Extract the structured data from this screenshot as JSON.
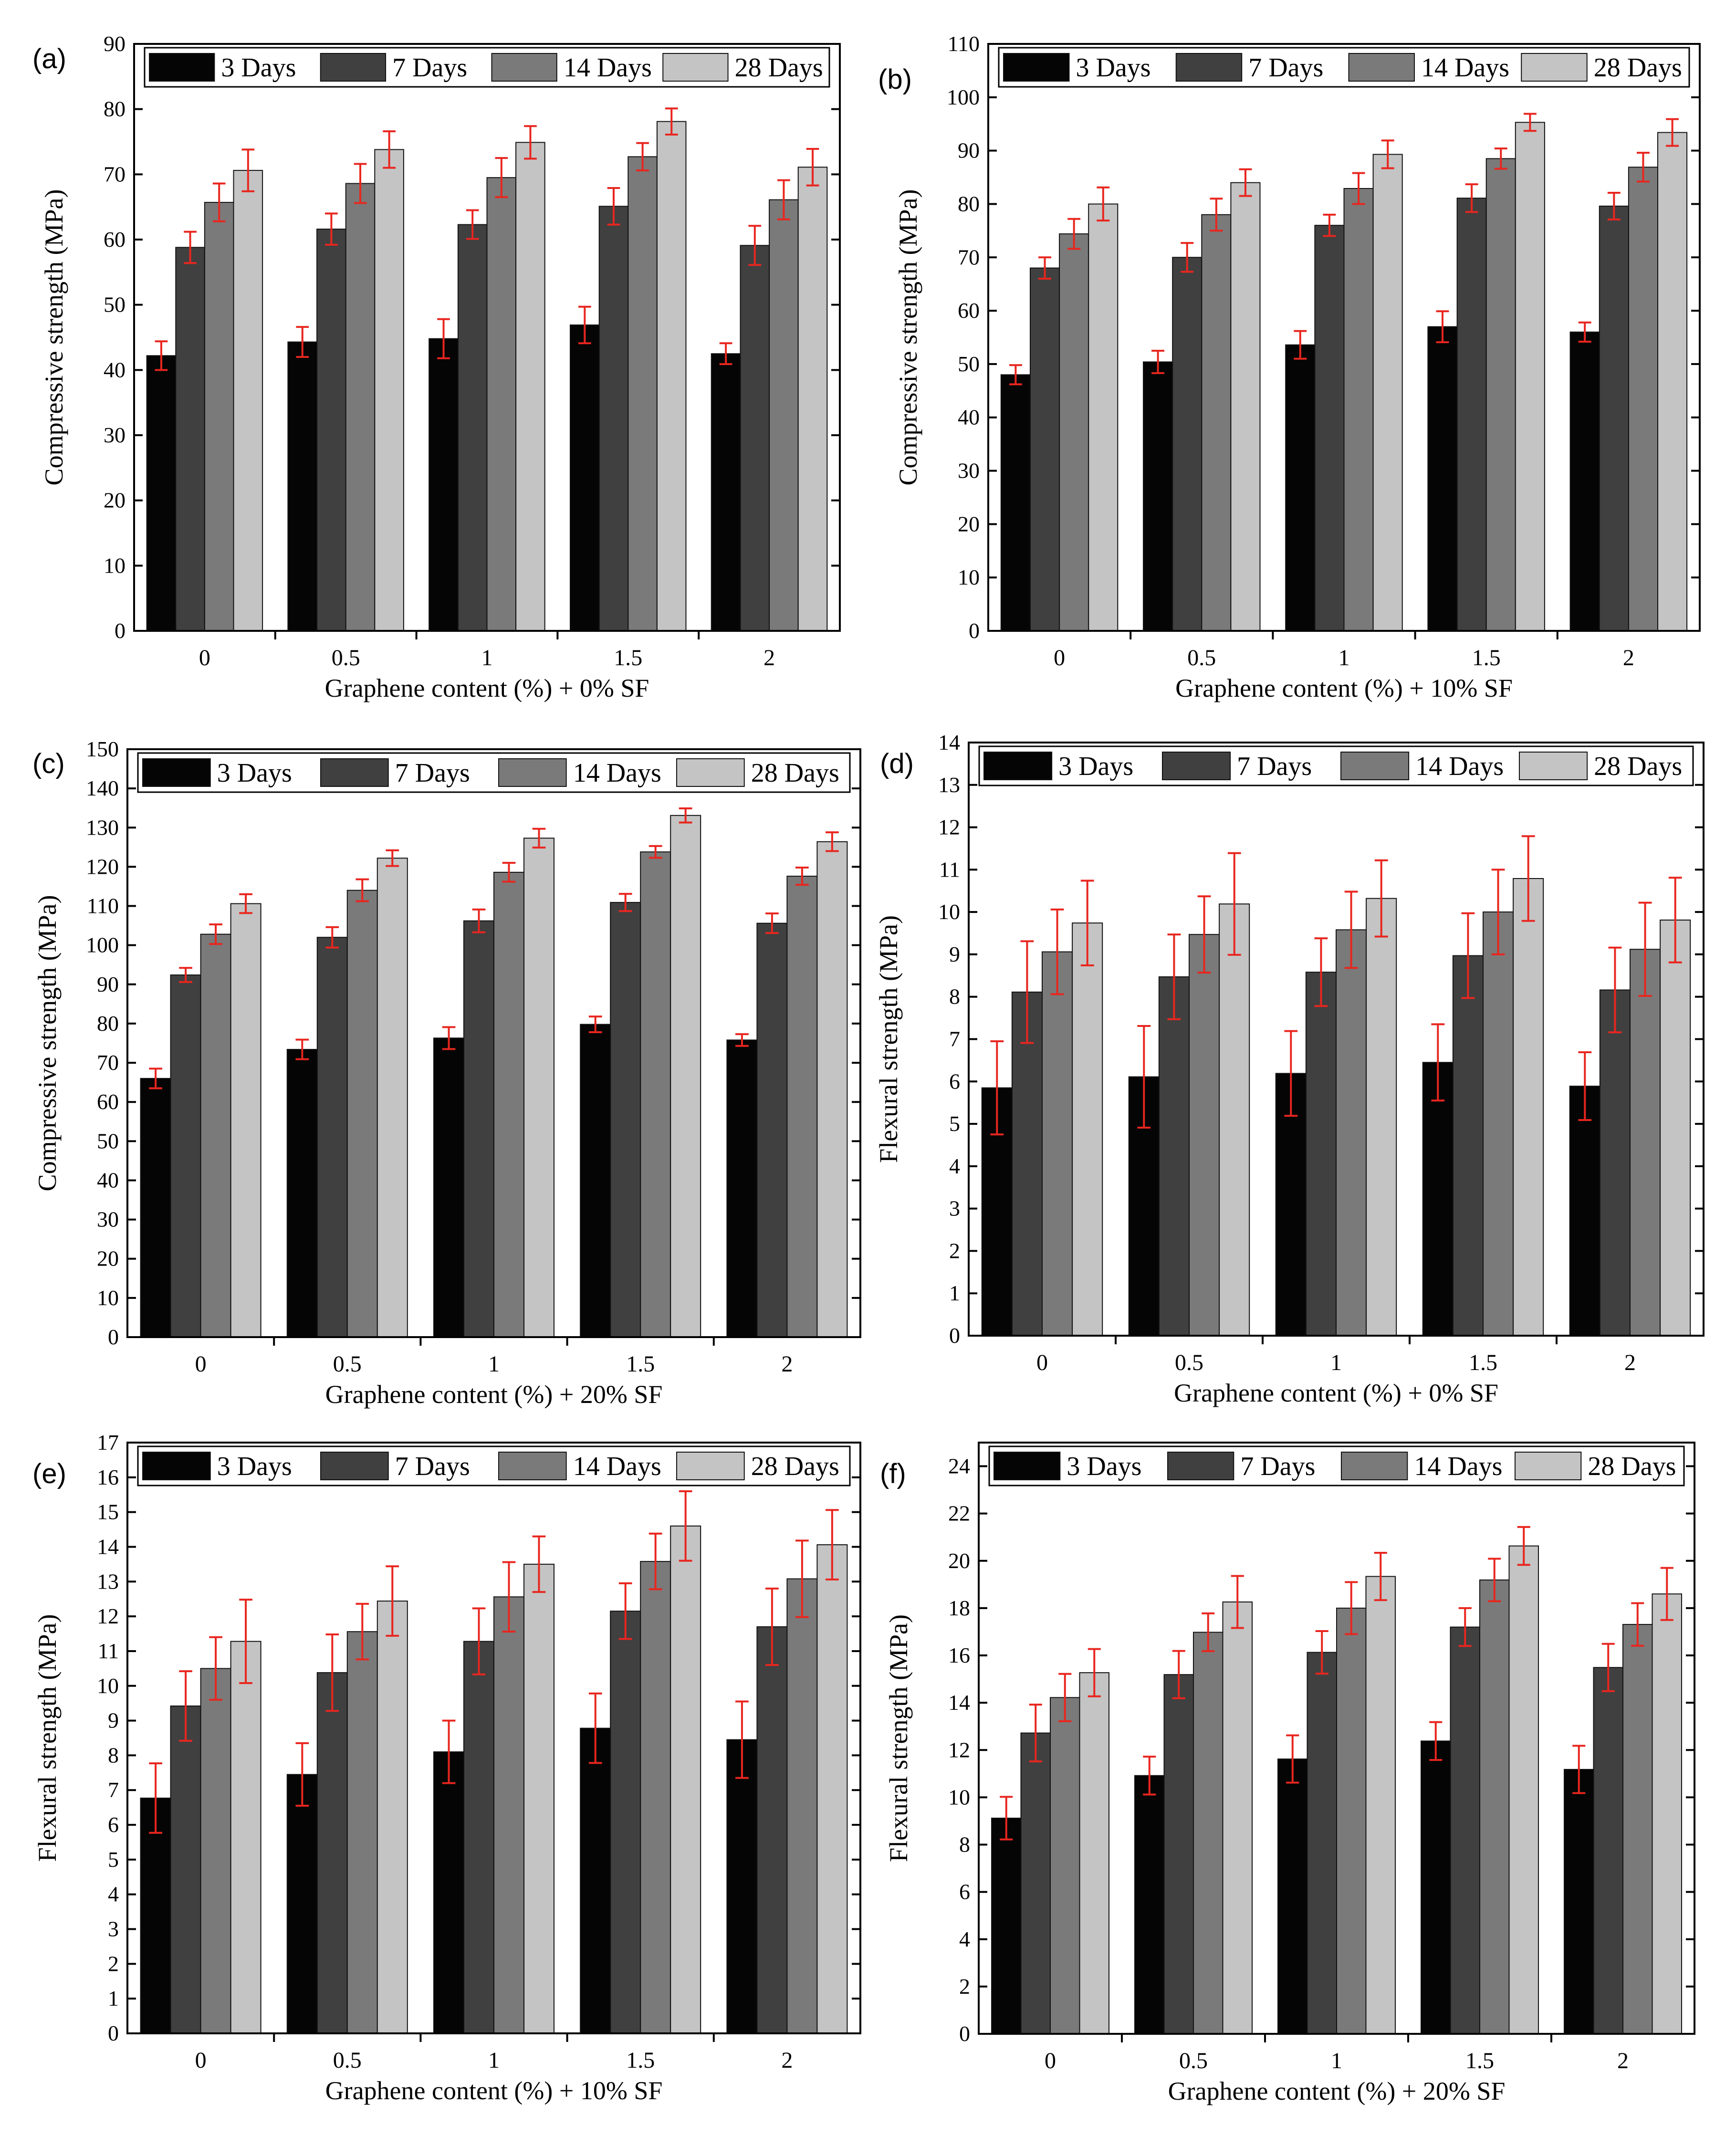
{
  "figure": {
    "legend": [
      "3 Days",
      "7 Days",
      "14 Days",
      "28 Days"
    ],
    "series_colors": [
      "#050505",
      "#404040",
      "#7a7a7a",
      "#c4c4c4"
    ],
    "error_bar_color": "#e8261f",
    "axis_color": "#000000"
  },
  "chart_data": [
    {
      "type": "bar",
      "panel_label": "(a)",
      "title": "",
      "xlabel": "Graphene content (%) + 0% SF",
      "ylabel": "Compressive strength (MPa)",
      "categories": [
        "0",
        "0.5",
        "1",
        "1.5",
        "2"
      ],
      "ylim": [
        0,
        90
      ],
      "yticks": [
        0,
        10,
        20,
        30,
        40,
        50,
        60,
        70,
        80,
        90
      ],
      "series": [
        {
          "name": "3 Days",
          "values": [
            42.2,
            44.3,
            44.8,
            46.9,
            42.5
          ],
          "errors": [
            2.2,
            2.3,
            3.0,
            2.8,
            1.6
          ]
        },
        {
          "name": "7 Days",
          "values": [
            58.8,
            61.6,
            62.3,
            65.1,
            59.1
          ],
          "errors": [
            2.4,
            2.4,
            2.2,
            2.8,
            3.0
          ]
        },
        {
          "name": "14 Days",
          "values": [
            65.7,
            68.6,
            69.5,
            72.7,
            66.1
          ],
          "errors": [
            2.9,
            3.0,
            3.0,
            2.1,
            3.0
          ]
        },
        {
          "name": "28 Days",
          "values": [
            70.6,
            73.8,
            74.9,
            78.1,
            71.1
          ],
          "errors": [
            3.2,
            2.8,
            2.5,
            2.0,
            2.8
          ]
        }
      ]
    },
    {
      "type": "bar",
      "panel_label": "(b)",
      "title": "",
      "xlabel": "Graphene content (%) + 10% SF",
      "ylabel": "Compressive strength (MPa)",
      "categories": [
        "0",
        "0.5",
        "1",
        "1.5",
        "2"
      ],
      "ylim": [
        0,
        110
      ],
      "yticks": [
        0,
        10,
        20,
        30,
        40,
        50,
        60,
        70,
        80,
        90,
        100,
        110
      ],
      "series": [
        {
          "name": "3 Days",
          "values": [
            48.0,
            50.4,
            53.6,
            57.0,
            56.0
          ],
          "errors": [
            1.8,
            2.1,
            2.6,
            2.9,
            1.8
          ]
        },
        {
          "name": "7 Days",
          "values": [
            68.0,
            70.0,
            76.0,
            81.1,
            79.6
          ],
          "errors": [
            2.0,
            2.7,
            2.0,
            2.6,
            2.5
          ]
        },
        {
          "name": "14 Days",
          "values": [
            74.4,
            78.0,
            82.9,
            88.5,
            86.9
          ],
          "errors": [
            2.8,
            3.0,
            2.9,
            1.9,
            2.7
          ]
        },
        {
          "name": "28 Days",
          "values": [
            80.0,
            84.0,
            89.3,
            95.3,
            93.4
          ],
          "errors": [
            3.1,
            2.5,
            2.6,
            1.6,
            2.5
          ]
        }
      ]
    },
    {
      "type": "bar",
      "panel_label": "(c)",
      "title": "",
      "xlabel": "Graphene content (%) + 20% SF",
      "ylabel": "Compressive strength (MPa)",
      "categories": [
        "0",
        "0.5",
        "1",
        "1.5",
        "2"
      ],
      "ylim": [
        0,
        150
      ],
      "yticks": [
        0,
        10,
        20,
        30,
        40,
        50,
        60,
        70,
        80,
        90,
        100,
        110,
        120,
        130,
        140,
        150
      ],
      "series": [
        {
          "name": "3 Days",
          "values": [
            66.0,
            73.4,
            76.3,
            79.8,
            75.8
          ],
          "errors": [
            2.5,
            2.5,
            2.8,
            2.0,
            1.5
          ]
        },
        {
          "name": "7 Days",
          "values": [
            92.4,
            102.0,
            106.2,
            110.9,
            105.6
          ],
          "errors": [
            1.8,
            2.6,
            2.9,
            2.2,
            2.5
          ]
        },
        {
          "name": "14 Days",
          "values": [
            102.8,
            114.0,
            118.6,
            123.8,
            117.6
          ],
          "errors": [
            2.5,
            2.8,
            2.4,
            1.5,
            2.2
          ]
        },
        {
          "name": "28 Days",
          "values": [
            110.6,
            122.2,
            127.3,
            133.1,
            126.4
          ],
          "errors": [
            2.4,
            2.0,
            2.4,
            1.8,
            2.4
          ]
        }
      ]
    },
    {
      "type": "bar",
      "panel_label": "(d)",
      "title": "",
      "xlabel": "Graphene content (%) + 0% SF",
      "ylabel": "Flexural strength (MPa)",
      "categories": [
        "0",
        "0.5",
        "1",
        "1.5",
        "2"
      ],
      "ylim": [
        0,
        14
      ],
      "yticks": [
        0,
        1,
        2,
        3,
        4,
        5,
        6,
        7,
        8,
        9,
        10,
        11,
        12,
        13,
        14
      ],
      "series": [
        {
          "name": "3 Days",
          "values": [
            5.85,
            6.11,
            6.19,
            6.45,
            5.89
          ],
          "errors": [
            1.1,
            1.2,
            1.0,
            0.9,
            0.8
          ]
        },
        {
          "name": "7 Days",
          "values": [
            8.11,
            8.47,
            8.58,
            8.97,
            8.16
          ],
          "errors": [
            1.2,
            1.0,
            0.8,
            1.0,
            1.0
          ]
        },
        {
          "name": "14 Days",
          "values": [
            9.06,
            9.47,
            9.58,
            10.0,
            9.12
          ],
          "errors": [
            1.0,
            0.9,
            0.9,
            1.0,
            1.1
          ]
        },
        {
          "name": "28 Days",
          "values": [
            9.74,
            10.19,
            10.32,
            10.79,
            9.81
          ],
          "errors": [
            1.0,
            1.2,
            0.9,
            1.0,
            1.0
          ]
        }
      ]
    },
    {
      "type": "bar",
      "panel_label": "(e)",
      "title": "",
      "xlabel": "Graphene content (%) + 10% SF",
      "ylabel": "Flexural strength (MPa)",
      "categories": [
        "0",
        "0.5",
        "1",
        "1.5",
        "2"
      ],
      "ylim": [
        0,
        17
      ],
      "yticks": [
        0,
        1,
        2,
        3,
        4,
        5,
        6,
        7,
        8,
        9,
        10,
        11,
        12,
        13,
        14,
        15,
        16,
        17
      ],
      "series": [
        {
          "name": "3 Days",
          "values": [
            6.77,
            7.45,
            8.1,
            8.78,
            8.45
          ],
          "errors": [
            1.0,
            0.9,
            0.9,
            1.0,
            1.1
          ]
        },
        {
          "name": "7 Days",
          "values": [
            9.42,
            10.38,
            11.28,
            12.15,
            11.7
          ],
          "errors": [
            1.0,
            1.1,
            0.95,
            0.8,
            1.1
          ]
        },
        {
          "name": "14 Days",
          "values": [
            10.5,
            11.56,
            12.56,
            13.58,
            13.08
          ],
          "errors": [
            0.9,
            0.8,
            1.0,
            0.8,
            1.1
          ]
        },
        {
          "name": "28 Days",
          "values": [
            11.28,
            12.44,
            13.5,
            14.6,
            14.06
          ],
          "errors": [
            1.2,
            1.0,
            0.8,
            1.0,
            1.0
          ]
        }
      ]
    },
    {
      "type": "bar",
      "panel_label": "(f)",
      "title": "",
      "xlabel": "Graphene content (%) + 20% SF",
      "ylabel": "Flexural strength (MPa)",
      "categories": [
        "0",
        "0.5",
        "1",
        "1.5",
        "2"
      ],
      "ylim": [
        0,
        25
      ],
      "yticks": [
        0,
        2,
        4,
        6,
        8,
        10,
        12,
        14,
        16,
        18,
        20,
        22,
        24
      ],
      "series": [
        {
          "name": "3 Days",
          "values": [
            9.12,
            10.92,
            11.62,
            12.38,
            11.18
          ],
          "errors": [
            0.9,
            0.8,
            1.0,
            0.8,
            1.0
          ]
        },
        {
          "name": "7 Days",
          "values": [
            12.72,
            15.19,
            16.13,
            17.2,
            15.49
          ],
          "errors": [
            1.2,
            1.0,
            0.9,
            0.8,
            1.0
          ]
        },
        {
          "name": "14 Days",
          "values": [
            14.22,
            16.98,
            18.0,
            19.19,
            17.31
          ],
          "errors": [
            1.0,
            0.8,
            1.1,
            0.9,
            0.9
          ]
        },
        {
          "name": "28 Days",
          "values": [
            15.27,
            18.26,
            19.34,
            20.63,
            18.6
          ],
          "errors": [
            1.0,
            1.1,
            1.0,
            0.8,
            1.1
          ]
        }
      ]
    }
  ]
}
